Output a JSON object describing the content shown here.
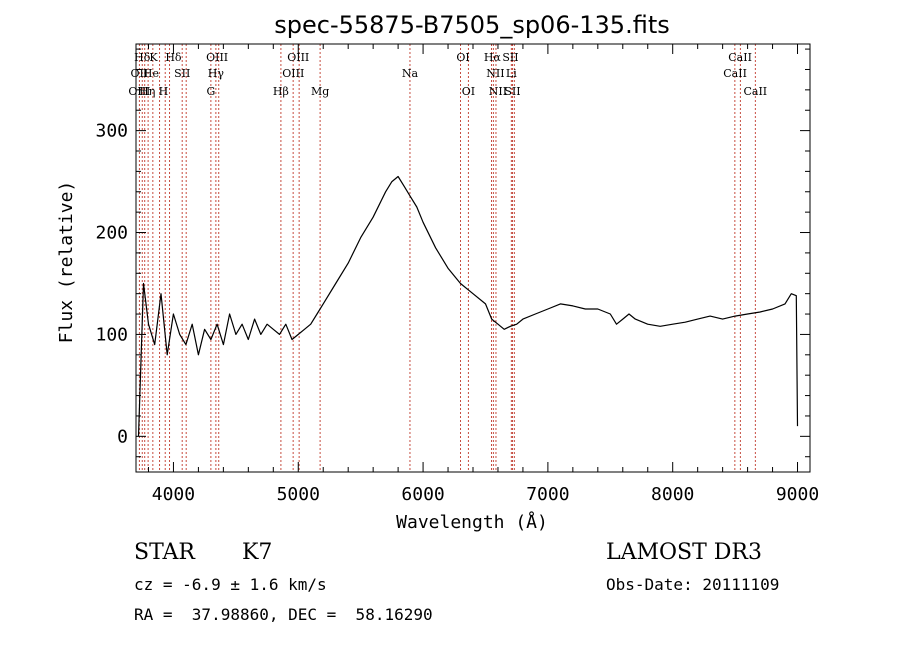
{
  "chart_data": {
    "type": "line",
    "title": "spec-55875-B7505_sp06-135.fits",
    "xlabel": "Wavelength (Å)",
    "ylabel": "Flux (relative)",
    "xlim": [
      3700,
      9100
    ],
    "ylim": [
      -35,
      385
    ],
    "x_ticks": [
      4000,
      5000,
      6000,
      7000,
      8000,
      9000
    ],
    "x_tick_labels": [
      "4000",
      "5000",
      "6000",
      "7000",
      "8000",
      "9000"
    ],
    "y_ticks": [
      0,
      100,
      200,
      300
    ],
    "y_tick_labels": [
      "0",
      "100",
      "200",
      "300"
    ],
    "series": [
      {
        "name": "flux",
        "x": [
          3720,
          3760,
          3800,
          3850,
          3900,
          3950,
          4000,
          4050,
          4100,
          4150,
          4200,
          4250,
          4300,
          4350,
          4400,
          4450,
          4500,
          4550,
          4600,
          4650,
          4700,
          4750,
          4800,
          4850,
          4900,
          4950,
          5000,
          5050,
          5100,
          5150,
          5200,
          5300,
          5400,
          5500,
          5600,
          5700,
          5750,
          5800,
          5850,
          5900,
          5950,
          6000,
          6100,
          6200,
          6300,
          6400,
          6500,
          6550,
          6600,
          6650,
          6700,
          6750,
          6800,
          6900,
          7000,
          7100,
          7200,
          7300,
          7400,
          7500,
          7550,
          7600,
          7650,
          7700,
          7800,
          7900,
          8000,
          8100,
          8200,
          8300,
          8400,
          8500,
          8600,
          8700,
          8800,
          8900,
          8950,
          8990,
          9000
        ],
        "y": [
          0,
          150,
          110,
          90,
          140,
          80,
          120,
          100,
          90,
          110,
          80,
          105,
          95,
          110,
          90,
          120,
          100,
          110,
          95,
          115,
          100,
          110,
          105,
          100,
          110,
          95,
          100,
          105,
          110,
          120,
          130,
          150,
          170,
          195,
          215,
          240,
          250,
          255,
          245,
          235,
          225,
          210,
          185,
          165,
          150,
          140,
          130,
          115,
          110,
          105,
          108,
          110,
          115,
          120,
          125,
          130,
          128,
          125,
          125,
          120,
          110,
          115,
          120,
          115,
          110,
          108,
          110,
          112,
          115,
          118,
          115,
          118,
          120,
          122,
          125,
          130,
          140,
          138,
          10
        ]
      }
    ],
    "line_labels": [
      {
        "label": "Hδ",
        "x": 3750,
        "row": 0
      },
      {
        "label": "K",
        "x": 3840,
        "row": 0
      },
      {
        "label": "Hδ",
        "x": 4000,
        "row": 0
      },
      {
        "label": "OIII",
        "x": 4350,
        "row": 0
      },
      {
        "label": "OIII",
        "x": 5000,
        "row": 0
      },
      {
        "label": "OI",
        "x": 6320,
        "row": 0
      },
      {
        "label": "Hα",
        "x": 6555,
        "row": 0
      },
      {
        "label": "SII",
        "x": 6700,
        "row": 0
      },
      {
        "label": "CaII",
        "x": 8540,
        "row": 0
      },
      {
        "label": "OII",
        "x": 3727,
        "row": 1
      },
      {
        "label": "He",
        "x": 3820,
        "row": 1
      },
      {
        "label": "SII",
        "x": 4070,
        "row": 1
      },
      {
        "label": "Hγ",
        "x": 4340,
        "row": 1
      },
      {
        "label": "OIII",
        "x": 4960,
        "row": 1
      },
      {
        "label": "Na",
        "x": 5895,
        "row": 1
      },
      {
        "label": "NII",
        "x": 6580,
        "row": 1
      },
      {
        "label": "Li",
        "x": 6707,
        "row": 1
      },
      {
        "label": "CaII",
        "x": 8500,
        "row": 1
      },
      {
        "label": "OIII",
        "x": 3727,
        "row": 2
      },
      {
        "label": "Hη",
        "x": 3790,
        "row": 2
      },
      {
        "label": "H",
        "x": 3920,
        "row": 2
      },
      {
        "label": "G",
        "x": 4300,
        "row": 2
      },
      {
        "label": "Hβ",
        "x": 4861,
        "row": 2
      },
      {
        "label": "Mg",
        "x": 5175,
        "row": 2
      },
      {
        "label": "OI",
        "x": 6363,
        "row": 2
      },
      {
        "label": "NII",
        "x": 6600,
        "row": 2
      },
      {
        "label": "SII",
        "x": 6716,
        "row": 2
      },
      {
        "label": "CaII",
        "x": 8662,
        "row": 2
      }
    ],
    "marker_lines_x": [
      3727,
      3750,
      3770,
      3797,
      3835,
      3889,
      3934,
      3969,
      4070,
      4102,
      4300,
      4340,
      4363,
      4861,
      4959,
      5007,
      5175,
      5895,
      6300,
      6363,
      6548,
      6563,
      6584,
      6707,
      6716,
      6731,
      8498,
      8542,
      8662
    ]
  },
  "info": {
    "object_class": "STAR",
    "subclass": "K7",
    "survey": "LAMOST DR3",
    "cz_line": "cz = -6.9 ± 1.6 km/s",
    "obs_date_line": "Obs-Date: 20111109",
    "radec_line": "RA =  37.98860, DEC =  58.16290"
  }
}
